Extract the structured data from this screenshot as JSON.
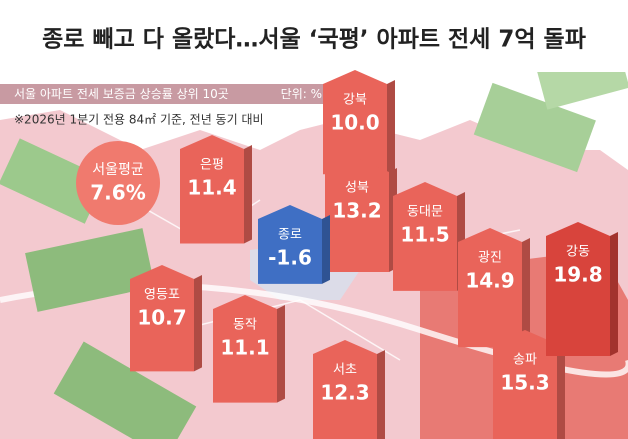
{
  "chart_data": {
    "type": "pillar-map",
    "title": "종로 빼고 다 올랐다…서울 ‘국평’ 아파트 전세 7억 돌파",
    "subtitle": "서울 아파트 전세 보증금 상승률 상위 10곳",
    "unit": "단위: %",
    "note": "※2026년 1분기 전용 84㎡ 기준, 전년 동기 대비",
    "average": {
      "label": "서울평균",
      "value": 7.6,
      "value_label": "7.6%"
    },
    "categories": [
      "강북",
      "은평",
      "성북",
      "종로",
      "동대문",
      "영등포",
      "동작",
      "서초",
      "광진",
      "송파",
      "강동"
    ],
    "values": [
      10.0,
      11.4,
      13.2,
      -1.6,
      11.5,
      10.7,
      11.1,
      12.3,
      14.9,
      15.3,
      19.8
    ],
    "value_labels": [
      "10.0",
      "11.4",
      "13.2",
      "-1.6",
      "11.5",
      "10.7",
      "11.1",
      "12.3",
      "14.9",
      "15.3",
      "19.8"
    ],
    "color": "#e9645a",
    "negative_color": "#3f6fc4",
    "highlight_color": "#d8443c"
  }
}
